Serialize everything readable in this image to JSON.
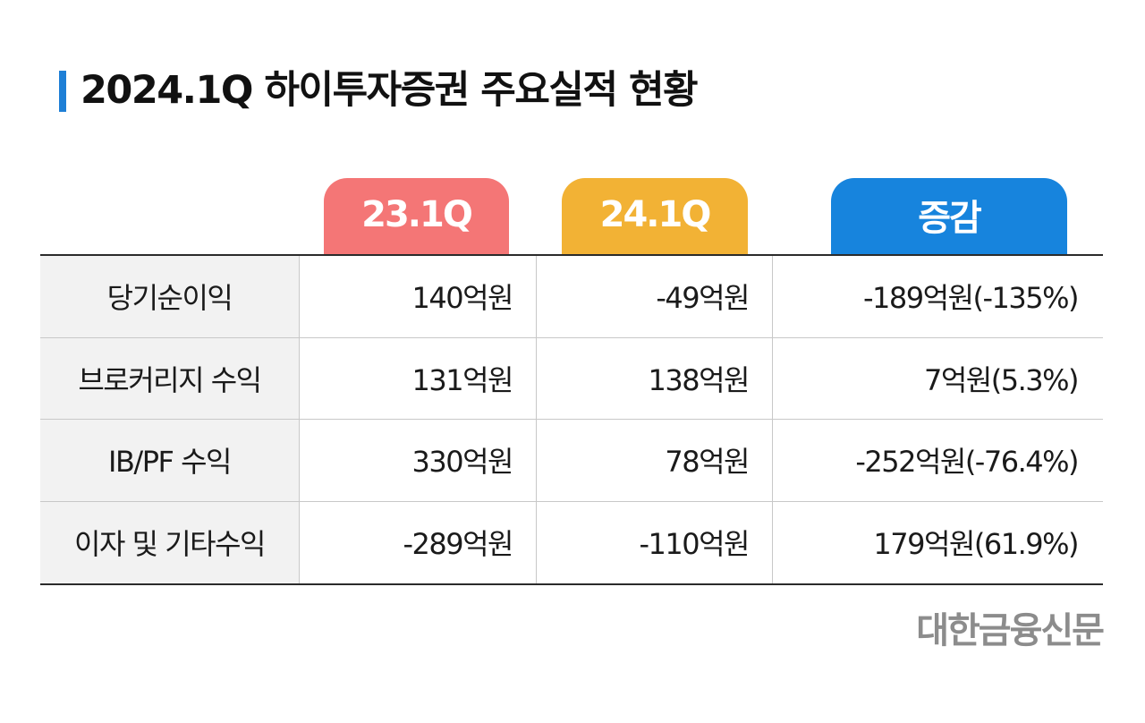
{
  "title": "2024.1Q 하이투자증권 주요실적 현황",
  "headers": {
    "q23": "23.1Q",
    "q24": "24.1Q",
    "diff": "증감"
  },
  "rows": [
    {
      "label": "당기순이익",
      "q23": "140억원",
      "q24": "-49억원",
      "diff": "-189억원(-135%)"
    },
    {
      "label": "브로커리지 수익",
      "q23": "131억원",
      "q24": "138억원",
      "diff": "7억원(5.3%)"
    },
    {
      "label": "IB/PF 수익",
      "q23": "330억원",
      "q24": "78억원",
      "diff": "-252억원(-76.4%)"
    },
    {
      "label": "이자 및 기타수익",
      "q23": "-289억원",
      "q24": "-110억원",
      "diff": "179억원(61.9%)"
    }
  ],
  "source": "대한금융신문",
  "colors": {
    "accent": "#1e7fd6",
    "tab_23": "#f47676",
    "tab_24": "#f2b235",
    "tab_diff": "#1784dd"
  }
}
